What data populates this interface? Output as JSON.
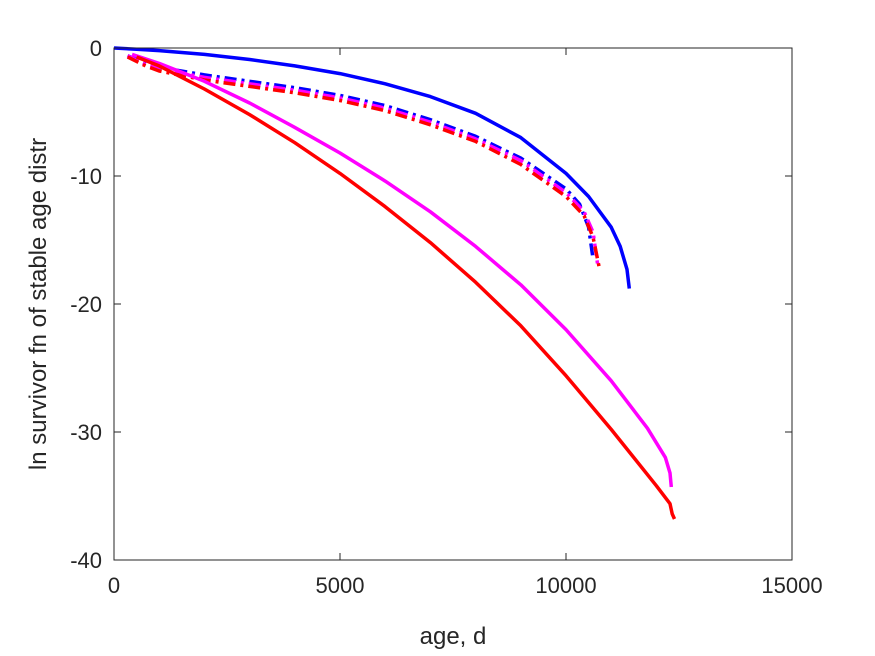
{
  "chart_data": {
    "type": "line",
    "title": "",
    "xlabel": "age, d",
    "ylabel": "ln survivor fn of stable age distr",
    "xlim": [
      0,
      15000
    ],
    "ylim": [
      -40,
      0
    ],
    "xticks": [
      0,
      5000,
      10000,
      15000
    ],
    "yticks": [
      0,
      -10,
      -20,
      -30,
      -40
    ],
    "grid": false,
    "legend": "none",
    "series": [
      {
        "color": "#0000ff",
        "style": "solid",
        "x": [
          0,
          500,
          1000,
          2000,
          3000,
          4000,
          5000,
          6000,
          7000,
          8000,
          9000,
          10000,
          10500,
          11000,
          11200,
          11350,
          11400
        ],
        "y": [
          0,
          -0.1,
          -0.2,
          -0.5,
          -0.9,
          -1.4,
          -2.0,
          -2.8,
          -3.8,
          -5.1,
          -7.0,
          -9.8,
          -11.6,
          -14.0,
          -15.5,
          -17.3,
          -18.8
        ]
      },
      {
        "color": "#0000ff",
        "style": "dashdot",
        "x": [
          300,
          700,
          1000,
          2000,
          3000,
          4000,
          5000,
          6000,
          7000,
          8000,
          9000,
          10000,
          10300,
          10500,
          10600
        ],
        "y": [
          -0.6,
          -1.2,
          -1.5,
          -2.1,
          -2.6,
          -3.1,
          -3.7,
          -4.5,
          -5.6,
          -6.9,
          -8.6,
          -11.0,
          -12.2,
          -14.0,
          -16.5
        ]
      },
      {
        "color": "#ff00ff",
        "style": "dashdot",
        "x": [
          300,
          700,
          1000,
          2000,
          3000,
          4000,
          5000,
          6000,
          7000,
          8000,
          9000,
          10000,
          10400,
          10600,
          10700
        ],
        "y": [
          -0.6,
          -1.3,
          -1.6,
          -2.3,
          -2.8,
          -3.3,
          -3.9,
          -4.7,
          -5.8,
          -7.1,
          -8.8,
          -11.3,
          -12.8,
          -14.4,
          -16.9
        ]
      },
      {
        "color": "#ff0000",
        "style": "dashdot",
        "x": [
          300,
          700,
          1000,
          2000,
          3000,
          4000,
          5000,
          6000,
          7000,
          8000,
          9000,
          10000,
          10400,
          10600,
          10750
        ],
        "y": [
          -0.7,
          -1.4,
          -1.8,
          -2.5,
          -3.0,
          -3.5,
          -4.1,
          -4.9,
          -6.0,
          -7.3,
          -9.1,
          -11.6,
          -13.1,
          -14.8,
          -17.4
        ]
      },
      {
        "color": "#ff00ff",
        "style": "solid",
        "x": [
          400,
          1000,
          2000,
          3000,
          4000,
          5000,
          6000,
          7000,
          8000,
          9000,
          10000,
          11000,
          11800,
          12200,
          12300,
          12330
        ],
        "y": [
          -0.5,
          -1.2,
          -2.6,
          -4.3,
          -6.2,
          -8.2,
          -10.4,
          -12.8,
          -15.5,
          -18.5,
          -22.0,
          -26.0,
          -29.7,
          -32.0,
          -33.2,
          -34.3
        ]
      },
      {
        "color": "#ff0000",
        "style": "solid",
        "x": [
          500,
          1000,
          2000,
          3000,
          4000,
          5000,
          6000,
          7000,
          8000,
          9000,
          10000,
          11000,
          12000,
          12300,
          12350,
          12400
        ],
        "y": [
          -0.7,
          -1.4,
          -3.2,
          -5.2,
          -7.4,
          -9.8,
          -12.4,
          -15.2,
          -18.3,
          -21.7,
          -25.6,
          -29.8,
          -34.2,
          -35.6,
          -36.4,
          -36.8
        ]
      }
    ]
  }
}
